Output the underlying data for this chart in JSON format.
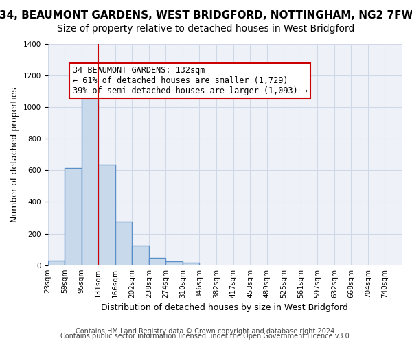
{
  "title_line1": "34, BEAUMONT GARDENS, WEST BRIDGFORD, NOTTINGHAM, NG2 7FW",
  "title_line2": "Size of property relative to detached houses in West Bridgford",
  "xlabel": "Distribution of detached houses by size in West Bridgford",
  "ylabel": "Number of detached properties",
  "bin_labels": [
    "23sqm",
    "59sqm",
    "95sqm",
    "131sqm",
    "166sqm",
    "202sqm",
    "238sqm",
    "274sqm",
    "310sqm",
    "346sqm",
    "382sqm",
    "417sqm",
    "453sqm",
    "489sqm",
    "525sqm",
    "561sqm",
    "597sqm",
    "632sqm",
    "668sqm",
    "704sqm",
    "740sqm"
  ],
  "bar_heights": [
    30,
    615,
    1085,
    635,
    275,
    125,
    45,
    25,
    15,
    0,
    0,
    0,
    0,
    0,
    0,
    0,
    0,
    0,
    0,
    0,
    0
  ],
  "bar_color": "#c9d9ec",
  "bar_edge_color": "#5b8fc9",
  "bar_edge_width": 1.0,
  "vline_x": 3,
  "vline_color": "#cc0000",
  "annotation_text": "34 BEAUMONT GARDENS: 132sqm\n← 61% of detached houses are smaller (1,729)\n39% of semi-detached houses are larger (1,093) →",
  "annotation_box_color": "#cc0000",
  "ylim": [
    0,
    1400
  ],
  "yticks": [
    0,
    200,
    400,
    600,
    800,
    1000,
    1200,
    1400
  ],
  "grid_color": "#d0d8e8",
  "background_color": "#eef2f8",
  "footer_line1": "Contains HM Land Registry data © Crown copyright and database right 2024.",
  "footer_line2": "Contains public sector information licensed under the Open Government Licence v3.0.",
  "title_fontsize": 11,
  "subtitle_fontsize": 10,
  "axis_label_fontsize": 9,
  "tick_fontsize": 7.5,
  "annotation_fontsize": 8.5,
  "footer_fontsize": 7
}
